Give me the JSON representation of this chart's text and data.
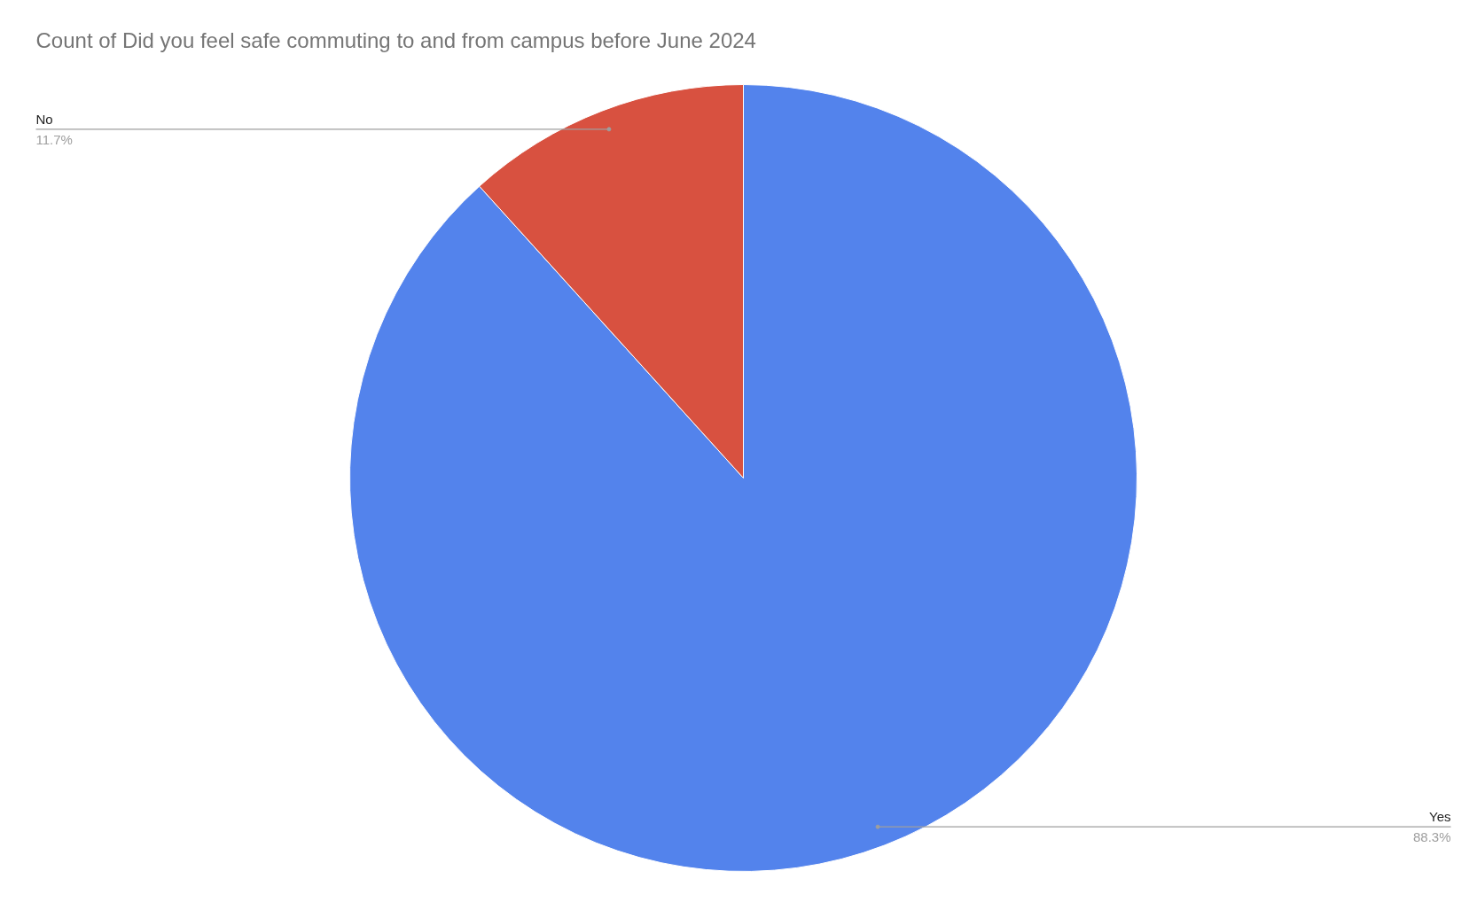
{
  "chart_data": {
    "type": "pie",
    "title": "Count of Did you feel safe commuting to and from campus before June 2024",
    "categories": [
      "Yes",
      "No"
    ],
    "values": [
      88.3,
      11.7
    ],
    "colors": [
      "#5383ec",
      "#d85140"
    ],
    "value_labels": [
      "88.3%",
      "11.7%"
    ]
  }
}
